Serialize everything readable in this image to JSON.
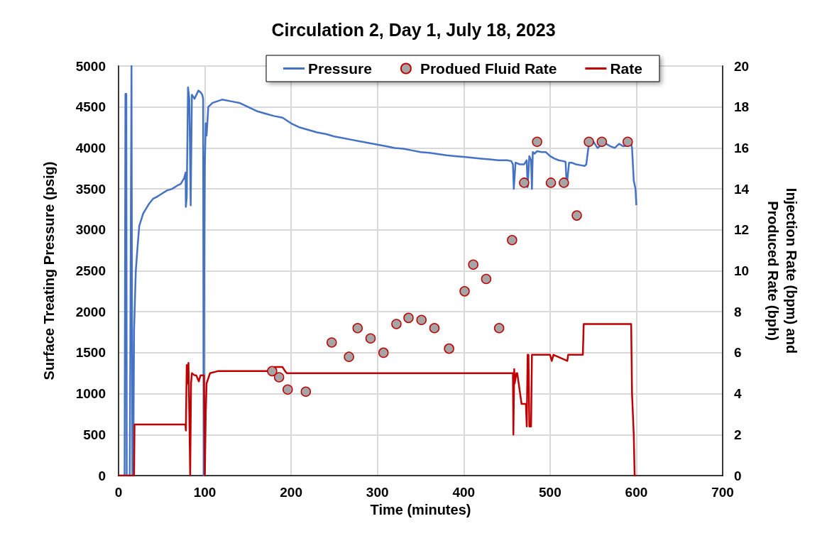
{
  "chart_data": {
    "type": "line",
    "title": "Circulation 2, Day 1, July 18, 2023",
    "xlabel": "Time (minutes)",
    "ylabel": "Surface Treating Pressure (psig)",
    "y2label": "Injection Rate (bpm) and\nProduced Rate (bph)",
    "xlim": [
      0,
      700
    ],
    "xticks": [
      0,
      100,
      200,
      300,
      400,
      500,
      600,
      700
    ],
    "ylim": [
      0,
      5000
    ],
    "yticks": [
      0,
      500,
      1000,
      1500,
      2000,
      2500,
      3000,
      3500,
      4000,
      4500,
      5000
    ],
    "y2lim": [
      0,
      20
    ],
    "y2ticks": [
      0,
      2,
      4,
      6,
      8,
      10,
      12,
      14,
      16,
      18,
      20
    ],
    "grid": true,
    "legend": "top",
    "line_style": "solid",
    "series": [
      {
        "name": "Pressure",
        "color": "#4472c4",
        "marker": "none",
        "x": [
          0,
          5,
          7,
          8,
          9,
          9.5,
          13,
          15,
          15.5,
          16,
          17,
          18,
          20,
          22,
          24,
          28.6,
          34.8,
          40,
          44,
          50,
          56,
          62,
          68,
          72,
          76,
          77.7,
          78,
          79,
          80.5,
          82,
          83.6,
          85,
          88,
          92.5,
          95,
          97,
          98,
          98.6,
          99.5,
          100,
          101,
          102,
          104,
          109,
          120,
          130,
          140,
          150,
          160,
          170,
          180,
          190,
          200,
          210,
          220,
          230,
          240,
          250,
          260,
          270,
          280,
          290,
          300,
          310,
          320,
          330,
          340,
          350,
          360,
          370,
          380,
          390,
          400,
          410,
          420,
          430,
          440,
          450,
          455,
          457,
          458,
          460,
          465,
          470,
          473,
          474,
          476,
          478,
          479,
          480,
          482,
          485,
          490,
          495,
          500,
          505,
          510,
          515,
          518,
          519,
          520,
          522,
          525,
          530,
          535,
          540,
          542,
          545,
          550,
          555,
          560,
          565,
          570,
          575,
          580,
          585,
          590,
          594,
          595,
          597,
          599,
          600
        ],
        "values": [
          0,
          0,
          0,
          4660,
          4660,
          0,
          0,
          5000,
          5000,
          0,
          0,
          1780,
          2500,
          2790,
          3050,
          3200,
          3310,
          3380,
          3400,
          3440,
          3480,
          3500,
          3540,
          3560,
          3630,
          3700,
          3280,
          3400,
          4740,
          4600,
          3300,
          4650,
          4600,
          4700,
          4680,
          4650,
          4600,
          0,
          3000,
          3800,
          4300,
          4150,
          4500,
          4550,
          4590,
          4570,
          4550,
          4500,
          4450,
          4420,
          4390,
          4370,
          4300,
          4250,
          4220,
          4190,
          4170,
          4140,
          4120,
          4100,
          4080,
          4060,
          4040,
          4020,
          4000,
          3990,
          3970,
          3950,
          3940,
          3925,
          3910,
          3900,
          3890,
          3880,
          3870,
          3860,
          3850,
          3850,
          3840,
          3800,
          3500,
          3820,
          3800,
          3800,
          3850,
          3520,
          3900,
          3850,
          3500,
          3950,
          3930,
          3960,
          3950,
          3950,
          3900,
          3870,
          3850,
          3840,
          3830,
          3600,
          3600,
          3820,
          3820,
          3800,
          3790,
          3780,
          3800,
          4050,
          4080,
          4000,
          4040,
          4050,
          4020,
          4000,
          4050,
          4020,
          4030,
          4050,
          4000,
          3600,
          3500,
          3300
        ]
      },
      {
        "name": "Produed Fluid Rate",
        "type": "scatter",
        "axis": "y2",
        "color": "#a5a5a5",
        "marker": "circle",
        "x": [
          178,
          186,
          196,
          217,
          247,
          267,
          277,
          292,
          307,
          322,
          336,
          351,
          366,
          383,
          401,
          411,
          426,
          441,
          456,
          470,
          485,
          501,
          516,
          531,
          545,
          560,
          590
        ],
        "values": [
          5.1,
          4.8,
          4.2,
          4.1,
          6.5,
          5.8,
          7.2,
          6.7,
          6.0,
          7.4,
          7.7,
          7.6,
          7.2,
          6.2,
          9.0,
          10.3,
          9.6,
          7.2,
          11.5,
          14.3,
          16.3,
          14.3,
          14.3,
          12.7,
          16.3,
          16.3,
          16.3
        ]
      },
      {
        "name": "Rate",
        "axis": "y2",
        "color": "#c00000",
        "marker": "none",
        "x": [
          0,
          18,
          18.5,
          19,
          50,
          77.5,
          78,
          79,
          80,
          81,
          82,
          83,
          83.5,
          84,
          85,
          88,
          90,
          93,
          95,
          97,
          99,
          99.5,
          100,
          101,
          102,
          106,
          115,
          130,
          150,
          175,
          180,
          190,
          193,
          195,
          250,
          350,
          457,
          457.5,
          458,
          458.5,
          459,
          461,
          462,
          467,
          468,
          469,
          472,
          473,
          474,
          475,
          476,
          478,
          479,
          480,
          500,
          502,
          504,
          520,
          521,
          522,
          530,
          538,
          539,
          540,
          560,
          580,
          594,
          595,
          596,
          597,
          598,
          600
        ],
        "values": [
          0,
          0,
          2.5,
          2.5,
          2.5,
          2.5,
          2.2,
          5.4,
          4.5,
          5.5,
          3,
          0,
          0,
          4.5,
          5,
          4.9,
          4.9,
          4.6,
          4.9,
          4.9,
          4.9,
          2.5,
          0,
          3,
          4.5,
          5.0,
          5.1,
          5.1,
          5.1,
          5.1,
          5.3,
          5.3,
          5.1,
          5.0,
          5.0,
          5.0,
          5.0,
          2.0,
          2.0,
          5.2,
          4.5,
          5.0,
          5.0,
          3.5,
          3.5,
          3.5,
          3.5,
          2.4,
          5.9,
          5.9,
          2.4,
          2.4,
          5.9,
          5.9,
          5.9,
          5.6,
          5.9,
          5.6,
          5.9,
          5.9,
          5.9,
          5.9,
          7.4,
          7.4,
          7.4,
          7.4,
          7.4,
          4,
          3,
          2,
          0,
          0
        ]
      }
    ]
  }
}
